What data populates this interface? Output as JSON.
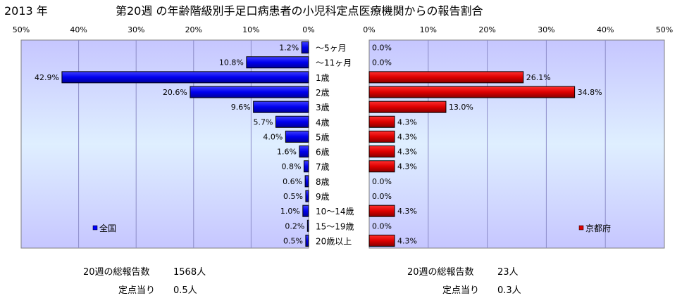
{
  "header": {
    "year": "2013 年",
    "title": "第20週 の年齢階級別手足口病患者の小児科定点医療機関からの報告割合"
  },
  "chart_data": {
    "type": "bar",
    "orientation": "horizontal",
    "categories": [
      "～5ヶ月",
      "～11ヶ月",
      "1歳",
      "2歳",
      "3歳",
      "4歳",
      "5歳",
      "6歳",
      "7歳",
      "8歳",
      "9歳",
      "10～14歳",
      "15～19歳",
      "20歳以上"
    ],
    "xlim": [
      0,
      50
    ],
    "tick_labels": [
      "0%",
      "10%",
      "20%",
      "30%",
      "40%",
      "50%"
    ],
    "grid": true,
    "series": [
      {
        "name": "全国",
        "color": "#0000ff",
        "values": [
          1.2,
          10.8,
          42.9,
          20.6,
          9.6,
          5.7,
          4.0,
          1.6,
          0.8,
          0.6,
          0.5,
          1.0,
          0.2,
          0.5
        ],
        "labels": [
          "1.2%",
          "10.8%",
          "42.9%",
          "20.6%",
          "9.6%",
          "5.7%",
          "4.0%",
          "1.6%",
          "0.8%",
          "0.6%",
          "0.5%",
          "1.0%",
          "0.2%",
          "0.5%"
        ],
        "legend_position": "bottom-left"
      },
      {
        "name": "京都府",
        "color": "#dd0000",
        "values": [
          0.0,
          0.0,
          26.1,
          34.8,
          13.0,
          4.3,
          4.3,
          4.3,
          4.3,
          0.0,
          0.0,
          4.3,
          0.0,
          4.3
        ],
        "labels": [
          "0.0%",
          "0.0%",
          "26.1%",
          "34.8%",
          "13.0%",
          "4.3%",
          "4.3%",
          "4.3%",
          "4.3%",
          "0.0%",
          "0.0%",
          "4.3%",
          "0.0%",
          "4.3%"
        ],
        "legend_position": "bottom-right"
      }
    ]
  },
  "footer": {
    "left": {
      "total_label": "20週の総報告数",
      "total_value": "1568人",
      "per_label": "定点当り",
      "per_value": "0.5人"
    },
    "right": {
      "total_label": "20週の総報告数",
      "total_value": "23人",
      "per_label": "定点当り",
      "per_value": "0.3人"
    }
  }
}
